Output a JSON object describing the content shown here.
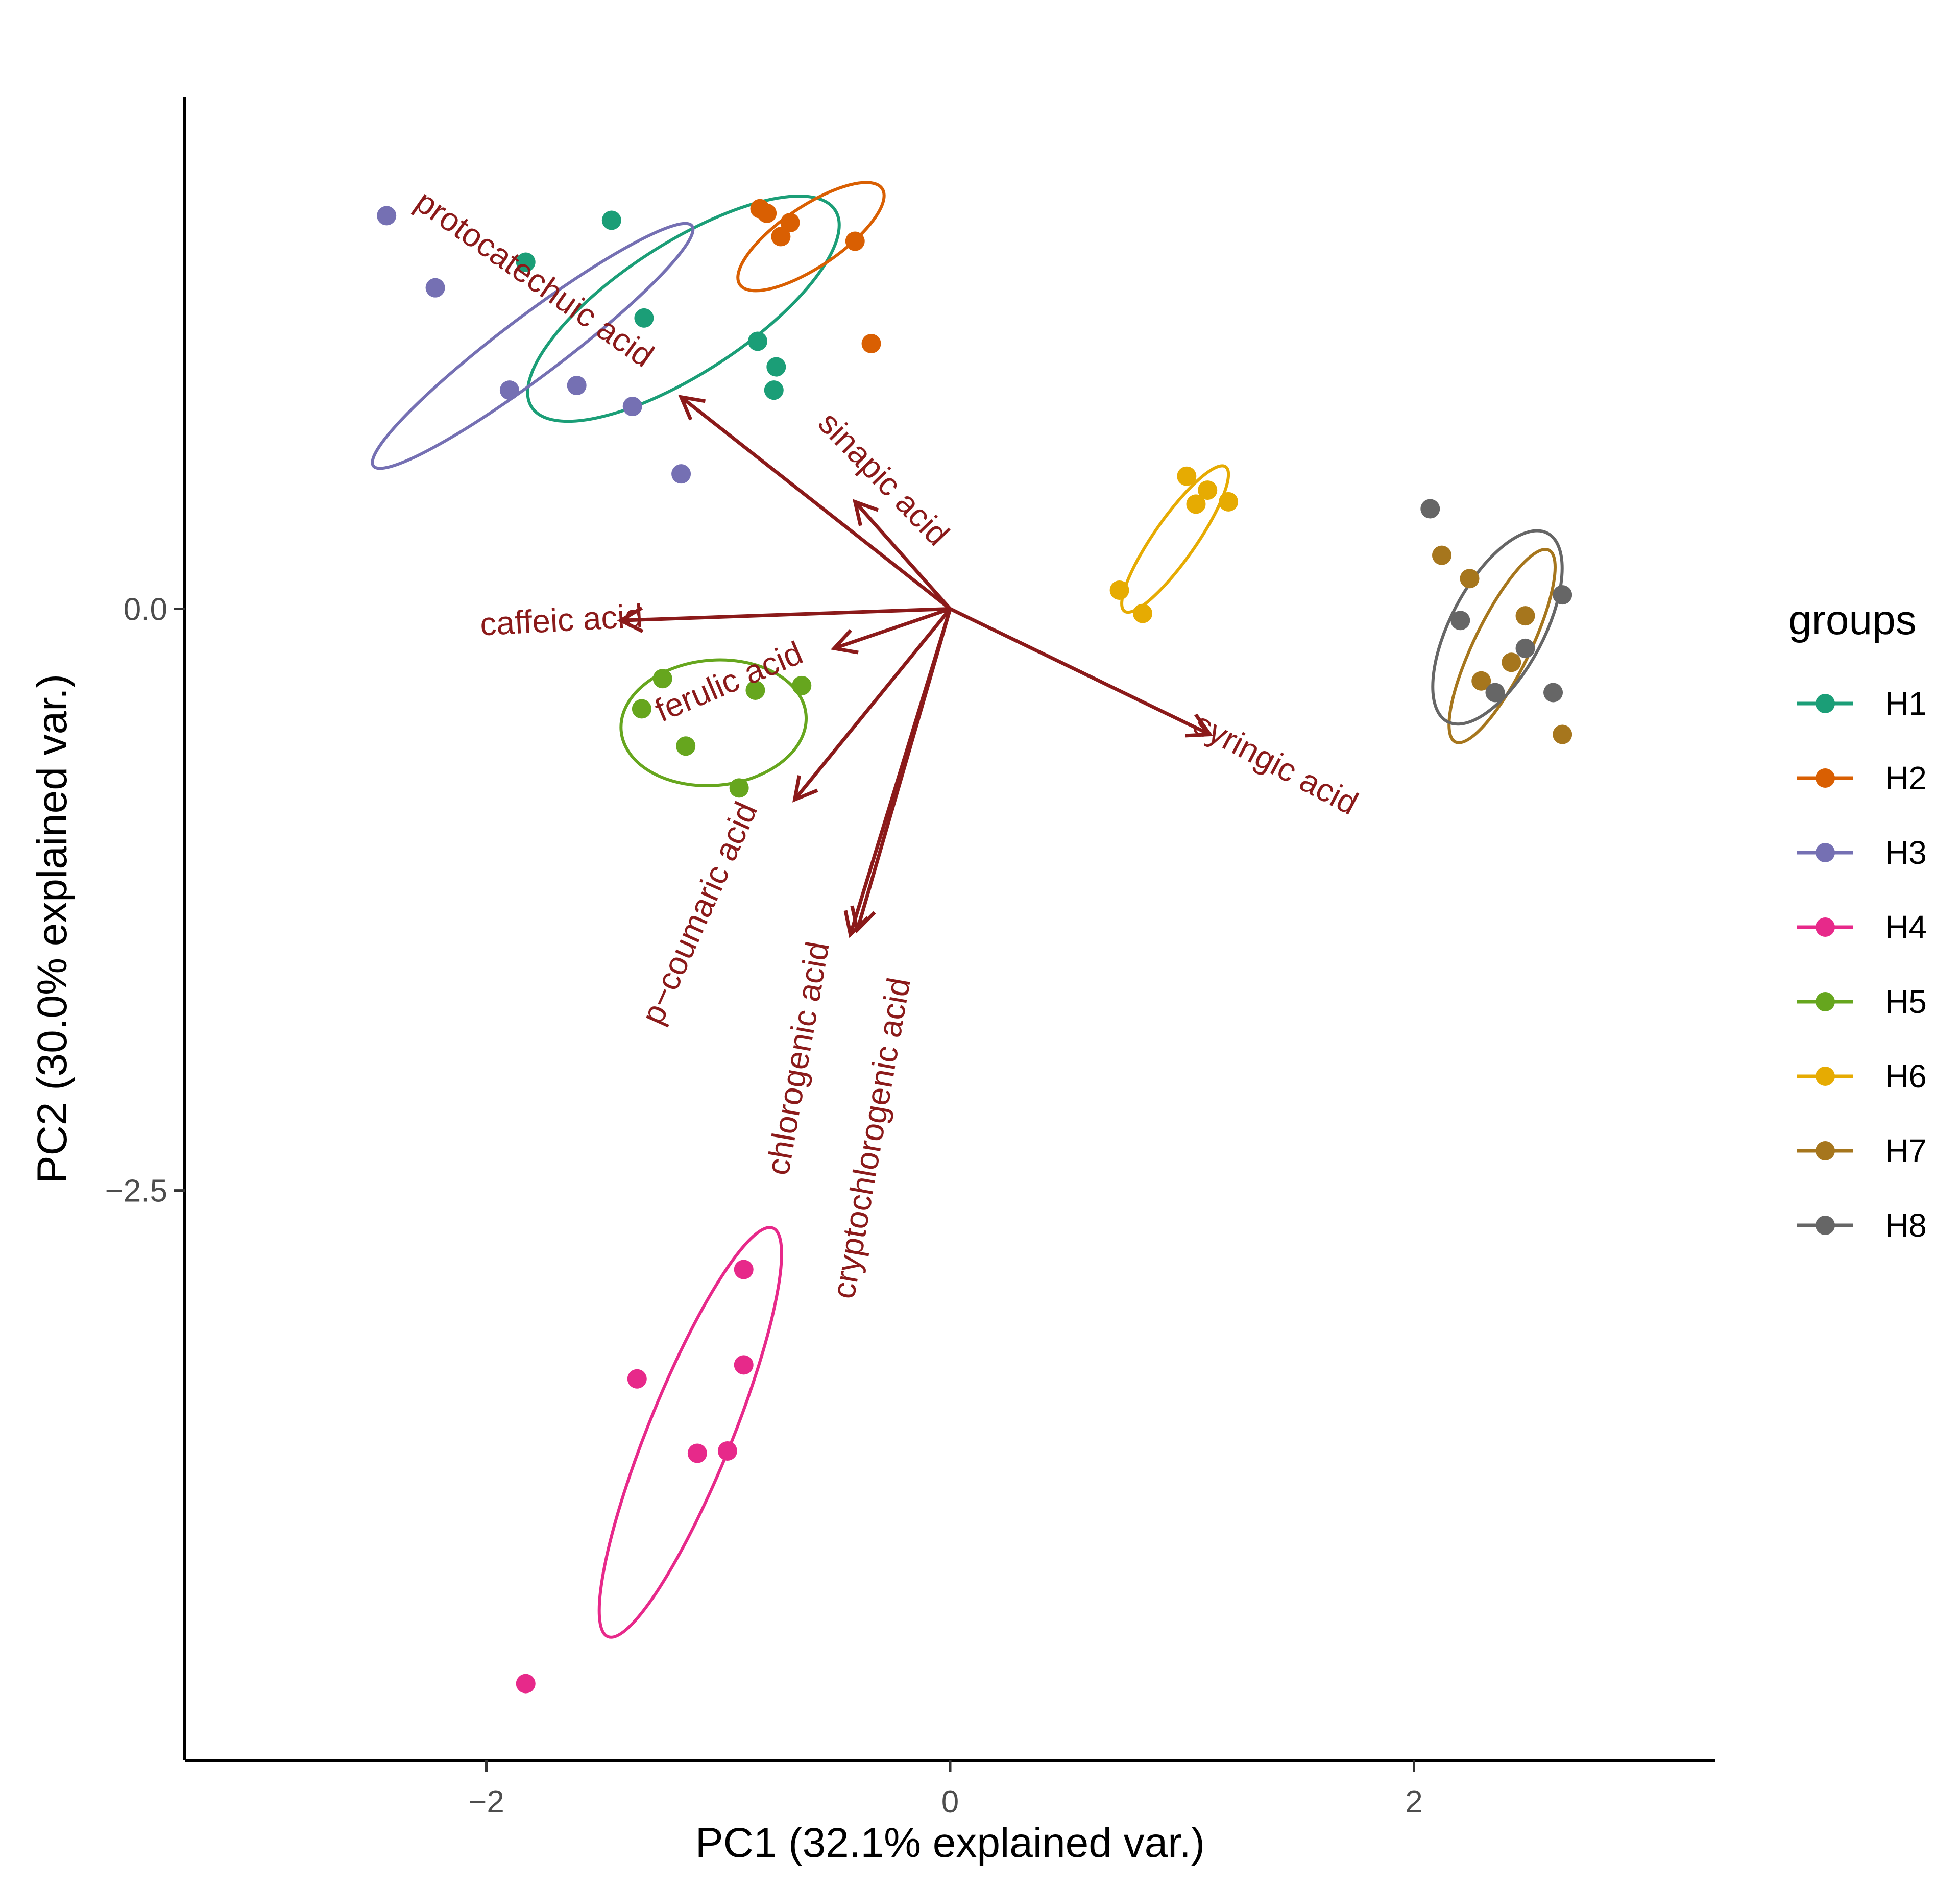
{
  "chart_data": {
    "type": "scatter",
    "title": "",
    "xlabel": "PC1 (32.1% explained var.)",
    "ylabel": "PC2 (30.0% explained var.)",
    "xlim": [
      -3.3,
      3.3
    ],
    "ylim": [
      -4.95,
      2.2
    ],
    "xticks": [
      -2,
      0,
      2
    ],
    "xtick_labels": [
      "−2",
      "0",
      "2"
    ],
    "yticks": [
      0,
      -2.5
    ],
    "ytick_labels": [
      "0.0",
      "−2.5"
    ],
    "grid": false,
    "legend": {
      "title": "groups",
      "position": "right"
    },
    "arrow_color": "#8B1A1A",
    "series": [
      {
        "name": "H1",
        "color": "#1B9E77",
        "points": [
          [
            -1.46,
            1.67
          ],
          [
            -1.83,
            1.49
          ],
          [
            -1.32,
            1.25
          ],
          [
            -0.83,
            1.15
          ],
          [
            -0.75,
            1.04
          ],
          [
            -0.76,
            0.94
          ]
        ],
        "ellipse": {
          "center": [
            -1.15,
            1.29
          ],
          "rx": 0.78,
          "ry": 0.28,
          "angle": -33
        }
      },
      {
        "name": "H2",
        "color": "#D95F02",
        "points": [
          [
            -0.82,
            1.72
          ],
          [
            -0.79,
            1.7
          ],
          [
            -0.69,
            1.66
          ],
          [
            -0.73,
            1.6
          ],
          [
            -0.41,
            1.58
          ],
          [
            -0.34,
            1.14
          ]
        ],
        "ellipse": {
          "center": [
            -0.6,
            1.6
          ],
          "rx": 0.37,
          "ry": 0.13,
          "angle": -34
        }
      },
      {
        "name": "H3",
        "color": "#7570B3",
        "points": [
          [
            -2.43,
            1.69
          ],
          [
            -2.22,
            1.38
          ],
          [
            -1.9,
            0.94
          ],
          [
            -1.61,
            0.96
          ],
          [
            -1.37,
            0.87
          ],
          [
            -1.16,
            0.58
          ]
        ],
        "ellipse": {
          "center": [
            -1.8,
            1.13
          ],
          "rx": 0.86,
          "ry": 0.13,
          "angle": -37
        }
      },
      {
        "name": "H4",
        "color": "#E7298A",
        "points": [
          [
            -0.89,
            -2.84
          ],
          [
            -0.89,
            -3.25
          ],
          [
            -1.35,
            -3.31
          ],
          [
            -0.96,
            -3.62
          ],
          [
            -1.09,
            -3.63
          ],
          [
            -1.83,
            -4.62
          ]
        ],
        "ellipse": {
          "center": [
            -1.12,
            -3.54
          ],
          "rx": 0.95,
          "ry": 0.18,
          "angle": -68
        }
      },
      {
        "name": "H5",
        "color": "#66A61E",
        "points": [
          [
            -1.24,
            -0.3
          ],
          [
            -0.64,
            -0.33
          ],
          [
            -0.84,
            -0.35
          ],
          [
            -1.33,
            -0.43
          ],
          [
            -1.14,
            -0.59
          ],
          [
            -0.91,
            -0.77
          ]
        ],
        "ellipse": {
          "center": [
            -1.02,
            -0.49
          ],
          "rx": 0.4,
          "ry": 0.27,
          "angle": -5
        }
      },
      {
        "name": "H6",
        "color": "#E6AB02",
        "points": [
          [
            1.02,
            0.57
          ],
          [
            1.11,
            0.51
          ],
          [
            1.06,
            0.45
          ],
          [
            1.2,
            0.46
          ],
          [
            0.73,
            0.08
          ],
          [
            0.83,
            -0.02
          ]
        ],
        "ellipse": {
          "center": [
            0.97,
            0.3
          ],
          "rx": 0.38,
          "ry": 0.09,
          "angle": -55
        }
      },
      {
        "name": "H7",
        "color": "#A6761D",
        "points": [
          [
            2.12,
            0.23
          ],
          [
            2.24,
            0.13
          ],
          [
            2.48,
            -0.03
          ],
          [
            2.29,
            -0.31
          ],
          [
            2.42,
            -0.23
          ],
          [
            2.64,
            -0.54
          ]
        ],
        "ellipse": {
          "center": [
            2.38,
            -0.16
          ],
          "rx": 0.46,
          "ry": 0.12,
          "angle": -64
        }
      },
      {
        "name": "H8",
        "color": "#666666",
        "points": [
          [
            2.07,
            0.43
          ],
          [
            2.2,
            -0.05
          ],
          [
            2.48,
            -0.17
          ],
          [
            2.64,
            0.06
          ],
          [
            2.35,
            -0.36
          ],
          [
            2.6,
            -0.36
          ]
        ],
        "ellipse": {
          "center": [
            2.36,
            -0.08
          ],
          "rx": 0.46,
          "ry": 0.2,
          "angle": -62
        }
      }
    ],
    "loadings": [
      {
        "label": "protocatechuic acid",
        "x": -1.16,
        "y": 0.91
      },
      {
        "label": "sinapic acid",
        "x": -0.41,
        "y": 0.46
      },
      {
        "label": "caffeic acid",
        "x": -1.42,
        "y": -0.05
      },
      {
        "label": "syringic acid",
        "x": 1.12,
        "y": -0.54
      },
      {
        "label": "ferulic acid",
        "x": -0.5,
        "y": -0.17
      },
      {
        "label": "p−coumaric acid",
        "x": -0.67,
        "y": -0.82
      },
      {
        "label": "chlorogenic acid",
        "x": -0.43,
        "y": -1.4
      },
      {
        "label": "cryptochlorogenic acid",
        "x": -0.4,
        "y": -1.38
      }
    ]
  }
}
